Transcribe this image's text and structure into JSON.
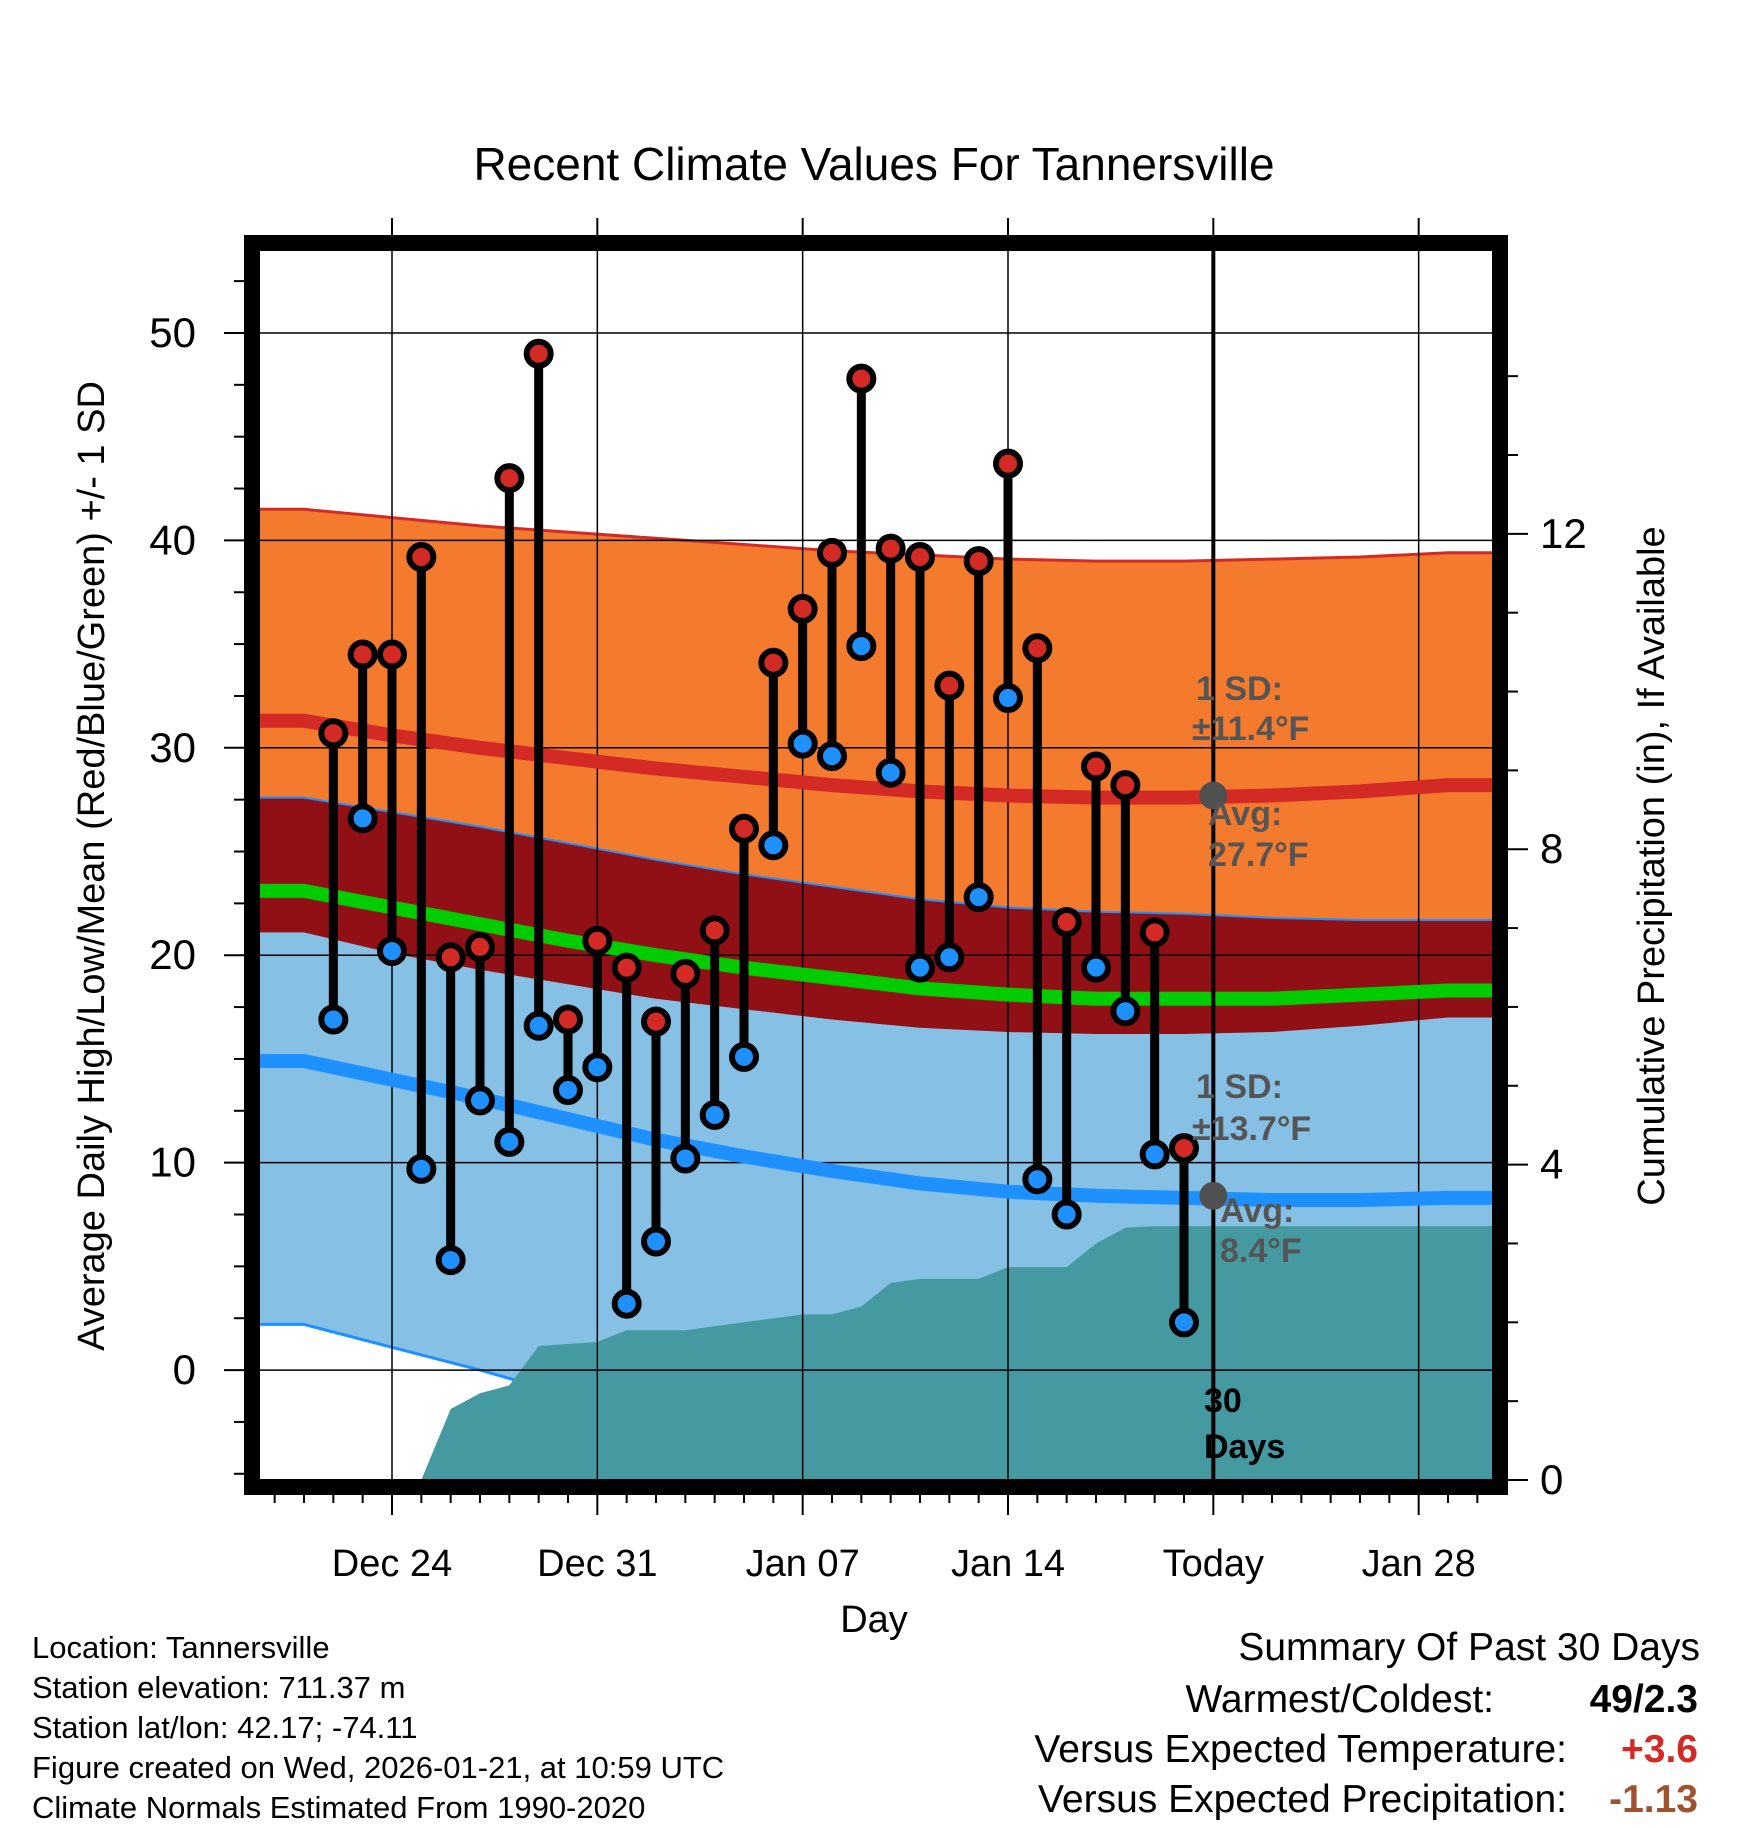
{
  "chart_data": {
    "type": "line",
    "title": "Recent Climate Values For Tannersville",
    "xlabel": "Day",
    "ylabel": "Average Daily High/Low/Mean (Red/Blue/Green) +/- 1 SD",
    "y2label": "Cumulative Precipitation (in), If Available",
    "x_range": [
      -4.5,
      37.5
    ],
    "ylim": [
      -5.3,
      54
    ],
    "y2lim": [
      0,
      15.6
    ],
    "x_tick_positions": [
      0,
      7,
      14,
      21,
      28,
      35
    ],
    "x_tick_labels": [
      "Dec 24",
      "Dec 31",
      "Jan 07",
      "Jan 14",
      "Today",
      "Jan 28"
    ],
    "y_ticks": [
      0,
      10,
      20,
      30,
      40,
      50
    ],
    "y_tick_labels": [
      "0",
      "10",
      "20",
      "30",
      "40",
      "50"
    ],
    "y2_ticks": [
      0,
      4,
      8,
      12
    ],
    "y2_tick_labels": [
      "0",
      "4",
      "8",
      "12"
    ],
    "today_x": 28,
    "colors": {
      "high_band": "#f47b2e",
      "high_line": "#d42a26",
      "overlap_band": "#901015",
      "low_band": "#86c1e5",
      "low_line": "#1e90ff",
      "mean_line": "#00cc00",
      "precip": "#449aa0",
      "high_marker": "#d42a26",
      "low_marker": "#1e90ff",
      "avg_marker": "#505050",
      "annotation": "#555555",
      "temp_anomaly": "#d42a26",
      "precip_anomaly": "#a0522d"
    },
    "normals": {
      "x": [
        -3,
        0,
        3,
        6,
        9,
        12,
        15,
        18,
        21,
        24,
        27,
        30,
        33,
        36
      ],
      "high_avg": [
        31.3,
        30.6,
        30.0,
        29.5,
        29.0,
        28.6,
        28.2,
        27.9,
        27.7,
        27.6,
        27.6,
        27.7,
        27.9,
        28.2
      ],
      "high_sd": [
        10.2,
        10.5,
        10.7,
        10.9,
        11.1,
        11.2,
        11.3,
        11.4,
        11.4,
        11.4,
        11.4,
        11.4,
        11.3,
        11.2
      ],
      "low_avg": [
        14.9,
        14.0,
        13.1,
        12.1,
        11.1,
        10.3,
        9.6,
        9.0,
        8.6,
        8.4,
        8.3,
        8.2,
        8.2,
        8.3
      ],
      "low_sd": [
        12.7,
        12.9,
        13.1,
        13.3,
        13.5,
        13.6,
        13.7,
        13.7,
        13.7,
        13.7,
        13.7,
        13.6,
        13.5,
        13.4
      ],
      "mean_avg": [
        23.1,
        22.3,
        21.5,
        20.7,
        20.0,
        19.4,
        18.9,
        18.4,
        18.1,
        17.9,
        17.9,
        17.9,
        18.1,
        18.3
      ]
    },
    "series": [
      {
        "name": "High",
        "x": [
          -2,
          -1,
          0,
          1,
          2,
          3,
          4,
          5,
          6,
          7,
          8,
          9,
          10,
          11,
          12,
          13,
          14,
          15,
          16,
          17,
          18,
          19,
          20,
          21,
          22,
          23,
          24,
          25,
          26,
          27
        ],
        "values": [
          30.7,
          34.5,
          34.5,
          39.2,
          19.9,
          20.4,
          43.0,
          49.0,
          16.9,
          20.7,
          19.4,
          16.8,
          19.1,
          21.2,
          26.1,
          34.1,
          36.7,
          39.4,
          47.8,
          39.6,
          39.2,
          33.0,
          39.0,
          43.7,
          34.8,
          21.6,
          29.1,
          28.2,
          21.1,
          10.7
        ]
      },
      {
        "name": "Low",
        "x": [
          -2,
          -1,
          0,
          1,
          2,
          3,
          4,
          5,
          6,
          7,
          8,
          9,
          10,
          11,
          12,
          13,
          14,
          15,
          16,
          17,
          18,
          19,
          20,
          21,
          22,
          23,
          24,
          25,
          26,
          27
        ],
        "values": [
          16.9,
          26.6,
          20.2,
          9.7,
          5.3,
          13.0,
          11.0,
          16.6,
          13.5,
          14.6,
          3.2,
          6.2,
          10.2,
          12.3,
          15.1,
          25.3,
          30.2,
          29.6,
          34.9,
          28.8,
          19.4,
          19.9,
          22.8,
          32.4,
          9.2,
          7.5,
          19.4,
          17.3,
          10.4,
          2.3
        ]
      }
    ],
    "precip_cumulative": {
      "x": [
        -4.5,
        1,
        2,
        3,
        4,
        5,
        7,
        8,
        10,
        12,
        14,
        15,
        16,
        17,
        18,
        20,
        21,
        23,
        24,
        25,
        26,
        37.5
      ],
      "values": [
        0,
        0,
        0.9,
        1.1,
        1.2,
        1.7,
        1.75,
        1.9,
        1.9,
        2.0,
        2.1,
        2.1,
        2.2,
        2.5,
        2.55,
        2.55,
        2.7,
        2.7,
        3.0,
        3.2,
        3.22,
        3.22
      ]
    },
    "annotations": {
      "high_sd_label": "1 SD:",
      "high_sd_value": "±11.4°F",
      "high_avg_label": "Avg:",
      "high_avg_value": "27.7°F",
      "high_avg": 27.7,
      "low_sd_label": "1 SD:",
      "low_sd_value": "±13.7°F",
      "low_avg_label": "Avg:",
      "low_avg_value": "8.4°F",
      "low_avg": 8.4,
      "window_count": "30",
      "window_unit": "Days"
    }
  },
  "station_info": {
    "location": "Location: Tannersville",
    "elevation": "Station elevation: 711.37 m",
    "latlon": "Station lat/lon: 42.17; -74.11",
    "created": "Figure created on Wed, 2026-01-21, at 10:59 UTC",
    "normals": "Climate Normals Estimated From 1990-2020"
  },
  "summary": {
    "title": "Summary Of Past 30 Days",
    "warmest_coldest_label": "Warmest/Coldest:",
    "warmest_coldest_value": "49/2.3",
    "temp_label": "Versus Expected Temperature:",
    "temp_value": "+3.6",
    "precip_label": "Versus Expected Precipitation:",
    "precip_value": "-1.13"
  }
}
